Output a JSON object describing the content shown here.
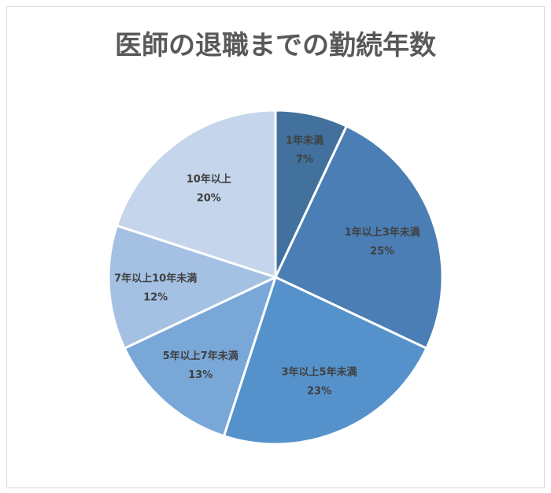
{
  "chart_data": {
    "type": "pie",
    "title": "医師の退職までの勤続年数",
    "categories": [
      "1年未満",
      "1年以上3年未満",
      "3年以上5年未満",
      "5年以上7年未満",
      "7年以上10年未満",
      "10年以上"
    ],
    "values": [
      7,
      25,
      23,
      13,
      12,
      20
    ],
    "labels": [
      "7%",
      "25%",
      "23%",
      "13%",
      "12%",
      "20%"
    ],
    "colors": [
      "#41719c",
      "#4a7eb4",
      "#5592cb",
      "#79a7d8",
      "#a4c1e4",
      "#c5d5eb"
    ],
    "start_angle": "top",
    "direction": "clockwise",
    "legend": "none"
  }
}
